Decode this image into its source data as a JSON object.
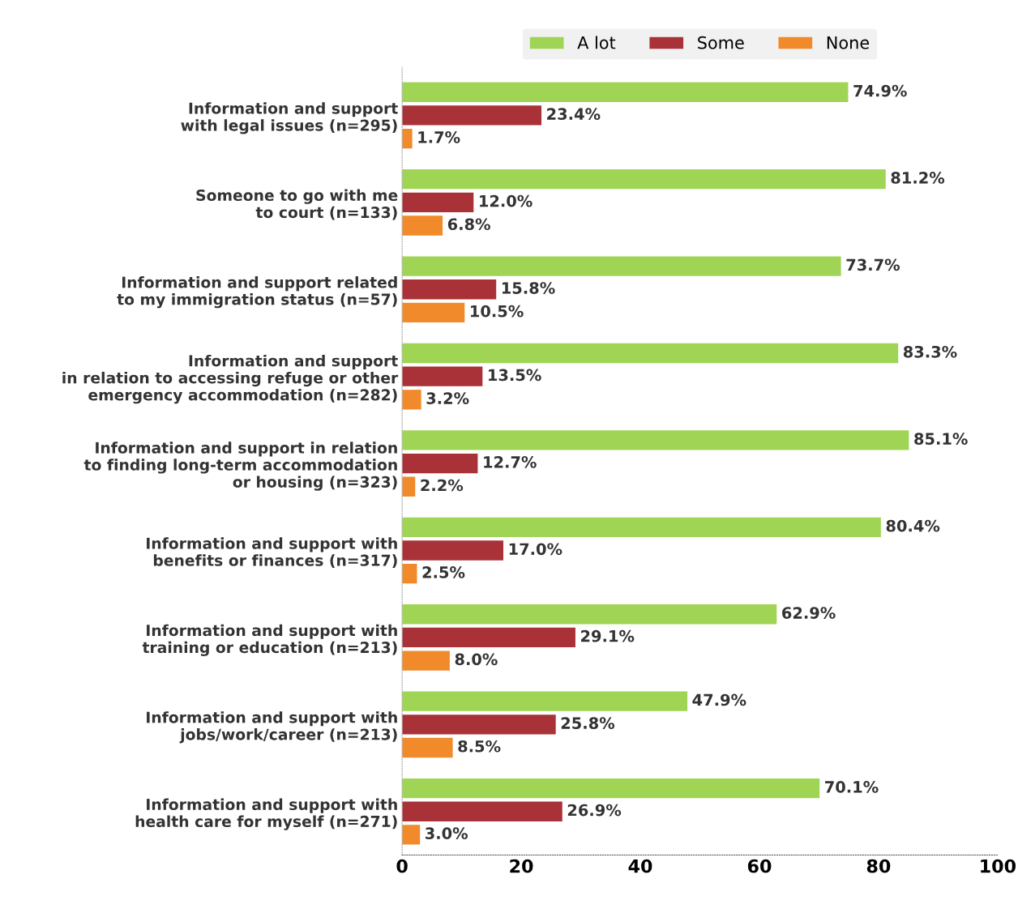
{
  "chart_data": {
    "type": "bar",
    "orientation": "horizontal",
    "categories": [
      "Information and support\nwith legal issues (n=295)",
      "Someone to go with me\nto court (n=133)",
      "Information and support related\nto my immigration status (n=57)",
      "Information and support\nin relation to accessing refuge or other\nemergency accommodation (n=282)",
      "Information and support in relation\nto finding long-term accommodation\nor housing (n=323)",
      "Information and support with\nbenefits or finances (n=317)",
      "Information and support with\ntraining or education (n=213)",
      "Information and support with\njobs/work/career (n=213)",
      "Information and support with\nhealth care for myself (n=271)"
    ],
    "series": [
      {
        "name": "A lot",
        "color": "#9fd455",
        "values": [
          74.9,
          81.2,
          73.7,
          83.3,
          85.1,
          80.4,
          62.9,
          47.9,
          70.1
        ],
        "value_labels": [
          "74.9%",
          "81.2%",
          "73.7%",
          "83.3%",
          "85.1%",
          "80.4%",
          "62.9%",
          "47.9%",
          "70.1%"
        ]
      },
      {
        "name": "Some",
        "color": "#a83238",
        "values": [
          23.4,
          12.0,
          15.8,
          13.5,
          12.7,
          17.0,
          29.1,
          25.8,
          26.9
        ],
        "value_labels": [
          "23.4%",
          "12.0%",
          "15.8%",
          "13.5%",
          "12.7%",
          "17.0%",
          "29.1%",
          "25.8%",
          "26.9%"
        ]
      },
      {
        "name": "None",
        "color": "#f08a2a",
        "values": [
          1.7,
          6.8,
          10.5,
          3.2,
          2.2,
          2.5,
          8.0,
          8.5,
          3.0
        ],
        "value_labels": [
          "1.7%",
          "6.8%",
          "10.5%",
          "3.2%",
          "2.2%",
          "2.5%",
          "8.0%",
          "8.5%",
          "3.0%"
        ]
      }
    ],
    "xlim": [
      0,
      100
    ],
    "xticks": [
      0,
      20,
      40,
      60,
      80,
      100
    ],
    "grid": false,
    "legend": "top"
  }
}
